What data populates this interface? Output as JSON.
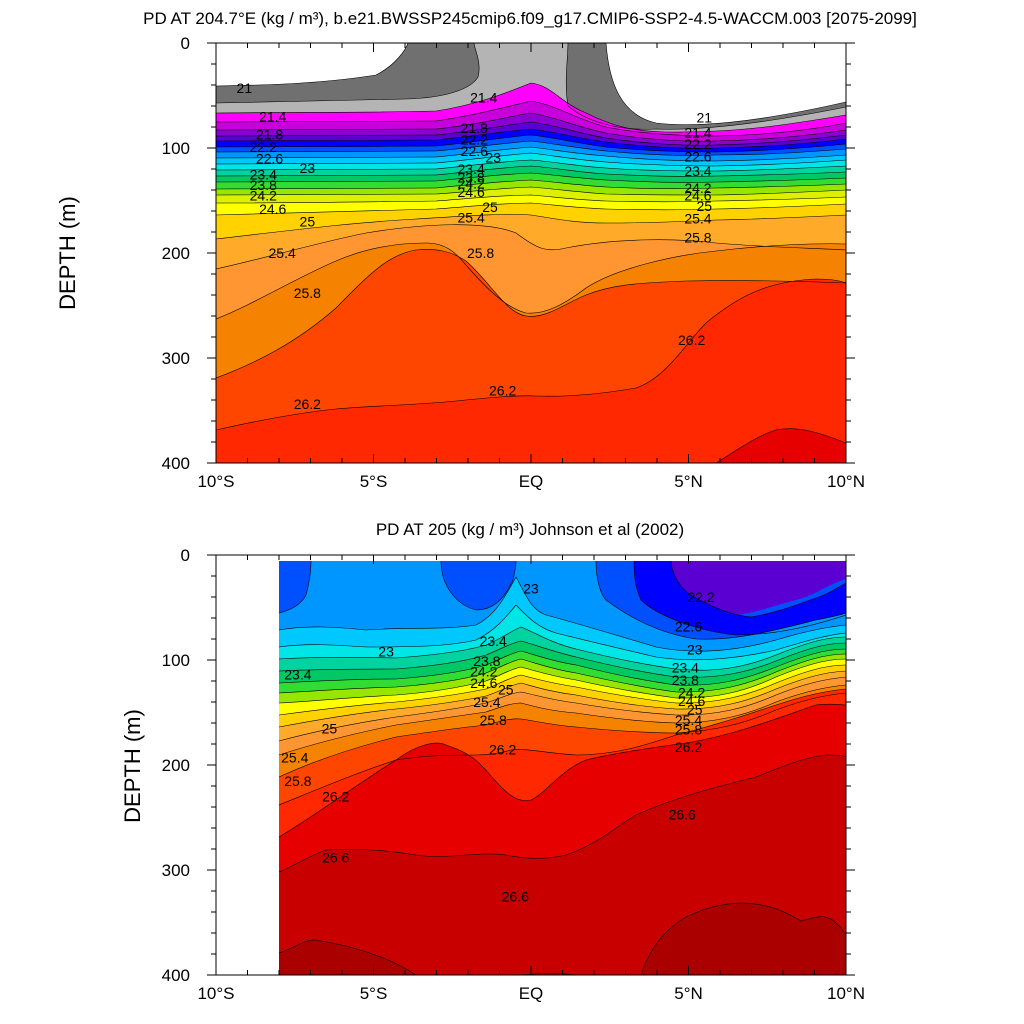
{
  "chart_data": [
    {
      "type": "contour",
      "title": "PD AT 204.7°E (kg / m³), b.e21.BWSSP245cmip6.f09_g17.CMIP6-SSP2-4.5-WACCM.003 [2075-2099]",
      "ylabel": "DEPTH (m)",
      "xlim": [
        -10,
        10
      ],
      "ylim": [
        0,
        400
      ],
      "y_reversed": true,
      "x_tick_labels": [
        "10°S",
        "5°S",
        "EQ",
        "5°N",
        "10°N"
      ],
      "y_tick_labels": [
        "0",
        "100",
        "200",
        "300",
        "400"
      ],
      "data_x_range": [
        -10,
        10
      ],
      "contour_interval": 0.2,
      "colormap": [
        "#ffffff",
        "#707070",
        "#b4b4b4",
        "#ff00ff",
        "#c800dc",
        "#8c00d2",
        "#5a00d2",
        "#0000ff",
        "#0050ff",
        "#0096ff",
        "#00c8ff",
        "#00e6e6",
        "#00d2a0",
        "#00c864",
        "#32dc32",
        "#96e600",
        "#dcf000",
        "#ffff00",
        "#ffd200",
        "#ffaa28",
        "#ff9632",
        "#f58200",
        "#ff4600",
        "#ff2800",
        "#e60000",
        "#c80000",
        "#aa0000"
      ],
      "contour_labels": [
        {
          "text": "21",
          "x": -9.1,
          "y": 43
        },
        {
          "text": "21.4",
          "x": -8.2,
          "y": 70
        },
        {
          "text": "21.8",
          "x": -8.3,
          "y": 87
        },
        {
          "text": "22.2",
          "x": -8.5,
          "y": 99
        },
        {
          "text": "22.6",
          "x": -8.3,
          "y": 110
        },
        {
          "text": "23",
          "x": -7.1,
          "y": 119
        },
        {
          "text": "23.4",
          "x": -8.5,
          "y": 125
        },
        {
          "text": "23.8",
          "x": -8.5,
          "y": 135
        },
        {
          "text": "24.2",
          "x": -8.5,
          "y": 145
        },
        {
          "text": "24.6",
          "x": -8.2,
          "y": 158
        },
        {
          "text": "25",
          "x": -7.1,
          "y": 170
        },
        {
          "text": "25.4",
          "x": -7.9,
          "y": 200
        },
        {
          "text": "25.8",
          "x": -7.1,
          "y": 238
        },
        {
          "text": "26.2",
          "x": -7.1,
          "y": 344
        },
        {
          "text": "21.4",
          "x": -1.5,
          "y": 52
        },
        {
          "text": "21.8",
          "x": -1.8,
          "y": 81
        },
        {
          "text": "22.2",
          "x": -1.8,
          "y": 92
        },
        {
          "text": "22.6",
          "x": -1.8,
          "y": 103
        },
        {
          "text": "23",
          "x": -1.2,
          "y": 109
        },
        {
          "text": "23.4",
          "x": -1.9,
          "y": 120
        },
        {
          "text": "23.8",
          "x": -1.9,
          "y": 128
        },
        {
          "text": "24.2",
          "x": -1.9,
          "y": 134
        },
        {
          "text": "24.6",
          "x": -1.9,
          "y": 142
        },
        {
          "text": "25",
          "x": -1.3,
          "y": 156
        },
        {
          "text": "25.4",
          "x": -1.9,
          "y": 166
        },
        {
          "text": "25.8",
          "x": -1.6,
          "y": 200
        },
        {
          "text": "26.2",
          "x": -0.9,
          "y": 331
        },
        {
          "text": "21",
          "x": 5.5,
          "y": 71
        },
        {
          "text": "21.4",
          "x": 5.3,
          "y": 85
        },
        {
          "text": "22.2",
          "x": 5.3,
          "y": 96
        },
        {
          "text": "22.6",
          "x": 5.3,
          "y": 108
        },
        {
          "text": "23.4",
          "x": 5.3,
          "y": 122
        },
        {
          "text": "24.2",
          "x": 5.3,
          "y": 138
        },
        {
          "text": "24.6",
          "x": 5.3,
          "y": 145
        },
        {
          "text": "25",
          "x": 5.5,
          "y": 155
        },
        {
          "text": "25.4",
          "x": 5.3,
          "y": 167
        },
        {
          "text": "25.8",
          "x": 5.3,
          "y": 185
        },
        {
          "text": "26.2",
          "x": 5.1,
          "y": 283
        }
      ]
    },
    {
      "type": "contour",
      "title": "PD AT 205 (kg / m³) Johnson et al (2002)",
      "ylabel": "DEPTH (m)",
      "xlim": [
        -10,
        10
      ],
      "ylim": [
        0,
        400
      ],
      "y_reversed": true,
      "x_tick_labels": [
        "10°S",
        "5°S",
        "EQ",
        "5°N",
        "10°N"
      ],
      "y_tick_labels": [
        "0",
        "100",
        "200",
        "300",
        "400"
      ],
      "data_x_range": [
        -8,
        10
      ],
      "contour_interval": 0.2,
      "colormap": [
        "#ffffff",
        "#707070",
        "#b4b4b4",
        "#ff00ff",
        "#c800dc",
        "#8c00d2",
        "#5a00d2",
        "#0000ff",
        "#0050ff",
        "#0096ff",
        "#00c8ff",
        "#00e6e6",
        "#00d2a0",
        "#00c864",
        "#32dc32",
        "#96e600",
        "#dcf000",
        "#ffff00",
        "#ffd200",
        "#ffaa28",
        "#ff9632",
        "#f58200",
        "#ff4600",
        "#ff2800",
        "#e60000",
        "#c80000",
        "#aa0000"
      ],
      "contour_labels": [
        {
          "text": "23",
          "x": 0.0,
          "y": 32
        },
        {
          "text": "23.4",
          "x": -1.2,
          "y": 82
        },
        {
          "text": "23",
          "x": -4.6,
          "y": 92
        },
        {
          "text": "23.4",
          "x": -7.4,
          "y": 114
        },
        {
          "text": "23.8",
          "x": -1.4,
          "y": 101
        },
        {
          "text": "24.2",
          "x": -1.5,
          "y": 111
        },
        {
          "text": "24.6",
          "x": -1.5,
          "y": 122
        },
        {
          "text": "25",
          "x": -0.8,
          "y": 128
        },
        {
          "text": "25.4",
          "x": -1.4,
          "y": 140
        },
        {
          "text": "25.8",
          "x": -1.2,
          "y": 157
        },
        {
          "text": "25",
          "x": -6.4,
          "y": 165
        },
        {
          "text": "26.2",
          "x": -0.9,
          "y": 185
        },
        {
          "text": "25.4",
          "x": -7.5,
          "y": 193
        },
        {
          "text": "25.8",
          "x": -7.4,
          "y": 215
        },
        {
          "text": "26.2",
          "x": -6.2,
          "y": 230
        },
        {
          "text": "26.6",
          "x": -6.2,
          "y": 288
        },
        {
          "text": "26.6",
          "x": -0.5,
          "y": 325
        },
        {
          "text": "22.2",
          "x": 5.4,
          "y": 40
        },
        {
          "text": "22.6",
          "x": 5.0,
          "y": 68
        },
        {
          "text": "23",
          "x": 5.2,
          "y": 90
        },
        {
          "text": "23.4",
          "x": 4.9,
          "y": 107
        },
        {
          "text": "23.8",
          "x": 4.9,
          "y": 119
        },
        {
          "text": "24.2",
          "x": 5.1,
          "y": 131
        },
        {
          "text": "24.6",
          "x": 5.1,
          "y": 139
        },
        {
          "text": "25",
          "x": 5.2,
          "y": 147
        },
        {
          "text": "25.4",
          "x": 5.0,
          "y": 157
        },
        {
          "text": "25.8",
          "x": 5.0,
          "y": 166
        },
        {
          "text": "26.2",
          "x": 5.0,
          "y": 183
        },
        {
          "text": "26.6",
          "x": 4.8,
          "y": 247
        }
      ]
    }
  ]
}
